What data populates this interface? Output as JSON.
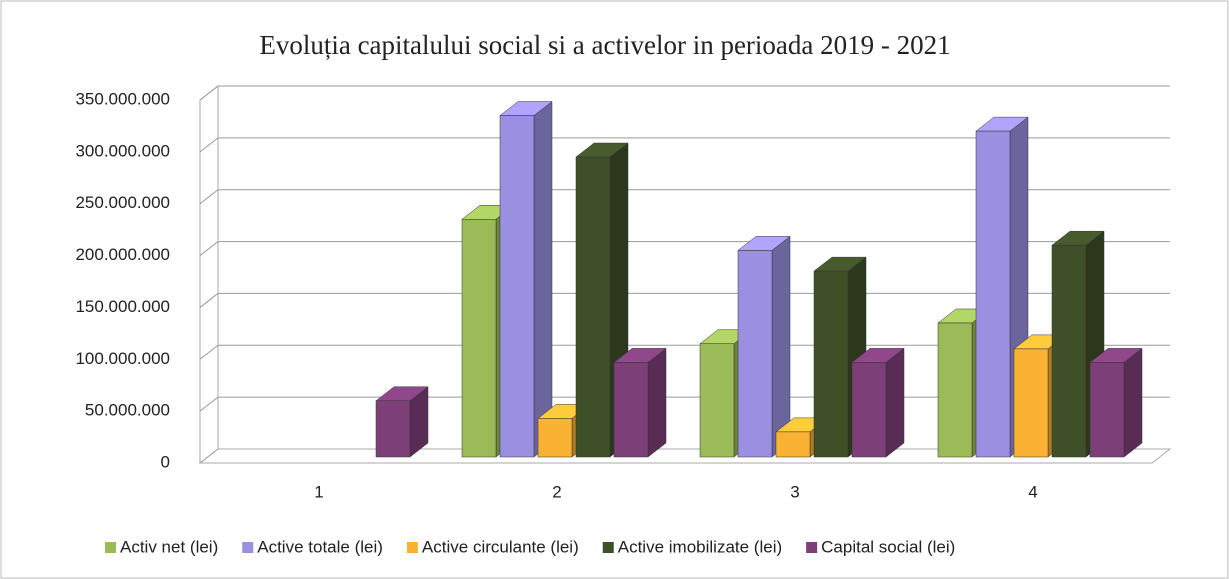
{
  "chart_data": {
    "type": "bar3d",
    "title": "Evoluția capitalului social si a activelor in perioada 2019 - 2021",
    "categories": [
      "1",
      "2",
      "3",
      "4"
    ],
    "series": [
      {
        "name": "Activ net (lei)",
        "color": "#9bbb59",
        "values": [
          0,
          235000000,
          115000000,
          135000000
        ]
      },
      {
        "name": "Active totale (lei)",
        "color": "#9a8fe0",
        "values": [
          0,
          335000000,
          205000000,
          320000000
        ]
      },
      {
        "name": "Active circulante (lei)",
        "color": "#f9b233",
        "values": [
          0,
          43000000,
          30000000,
          110000000
        ]
      },
      {
        "name": "Active imobilizate (lei)",
        "color": "#3f4f27",
        "values": [
          0,
          295000000,
          185000000,
          210000000
        ]
      },
      {
        "name": "Capital social (lei)",
        "color": "#7d3f78",
        "values": [
          60000000,
          97000000,
          97000000,
          97000000
        ]
      }
    ],
    "ylim": [
      0,
      350000000
    ],
    "yticks": [
      0,
      {
        "value": 50000000,
        "label": "50.000.000"
      },
      {
        "value": 100000000,
        "label": "100.000.000"
      },
      {
        "value": 150000000,
        "label": "150.000.000"
      },
      {
        "value": 200000000,
        "label": "200.000.000"
      },
      {
        "value": 250000000,
        "label": "250.000.000"
      },
      {
        "value": 300000000,
        "label": "300.000.000"
      },
      {
        "value": 350000000,
        "label": "350.000.000"
      }
    ],
    "grid": true,
    "legend": "bottom"
  }
}
